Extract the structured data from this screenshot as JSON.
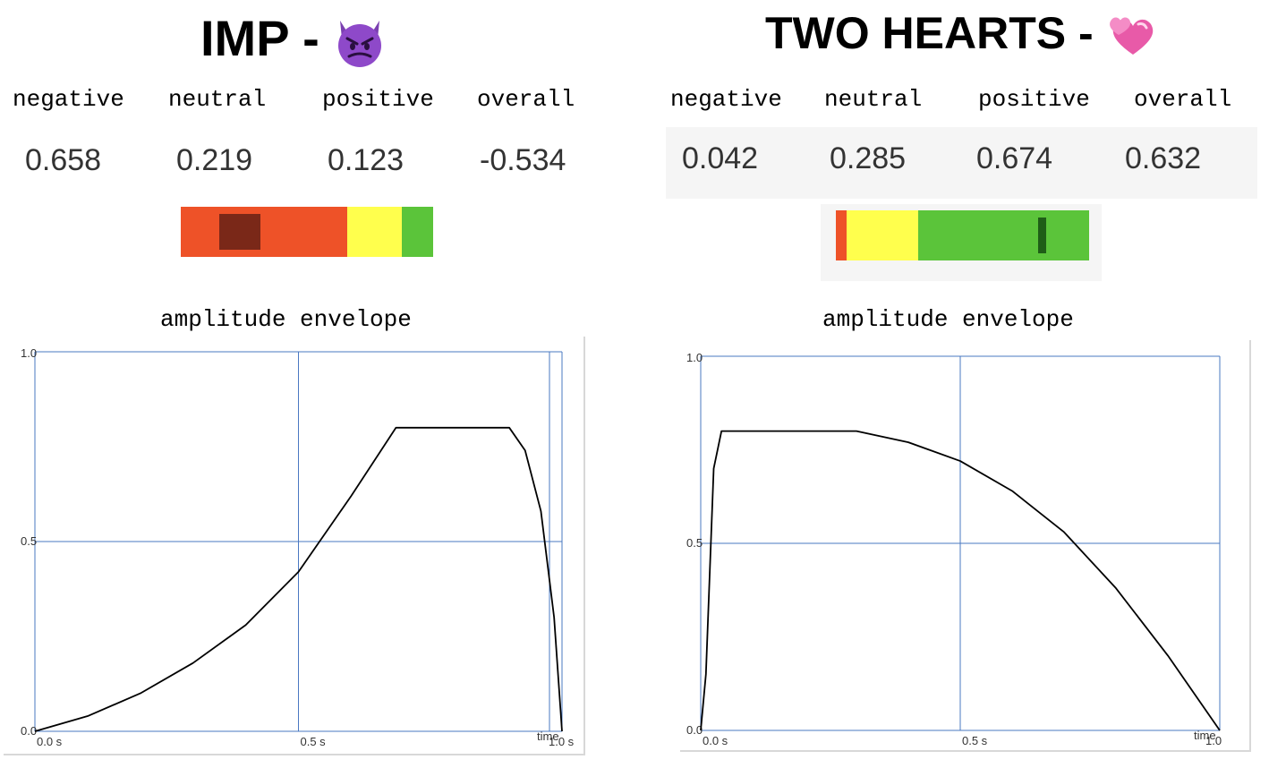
{
  "imp": {
    "title": "IMP -",
    "emoji": "smiling-imp-emoji",
    "headers": [
      "negative",
      "neutral",
      "positive",
      "overall"
    ],
    "values": [
      "0.658",
      "0.219",
      "0.123",
      "-0.534"
    ],
    "bar": {
      "negative": 0.658,
      "neutral": 0.219,
      "positive": 0.123,
      "overall": -0.534
    },
    "envelope_title": "amplitude envelope",
    "chart_data": {
      "type": "line",
      "title": "amplitude envelope",
      "xlabel": "time",
      "ylabel": "",
      "xlim": [
        0,
        1.0
      ],
      "ylim": [
        0,
        1.0
      ],
      "x_ticks": [
        "0.0 s",
        "0.5 s",
        "1.0 s"
      ],
      "y_ticks": [
        "0.0",
        "0.5",
        "1.0"
      ],
      "grid": true,
      "series": [
        {
          "name": "envelope",
          "x": [
            0,
            0.1,
            0.2,
            0.3,
            0.4,
            0.5,
            0.6,
            0.685,
            0.9,
            0.93,
            0.96,
            0.985,
            1.0
          ],
          "y": [
            0,
            0.04,
            0.1,
            0.18,
            0.28,
            0.42,
            0.62,
            0.8,
            0.8,
            0.74,
            0.58,
            0.3,
            0.0
          ]
        }
      ]
    },
    "x_axis_label": "time",
    "x_tick_labels": [
      "0.0 s",
      "0.5 s",
      "1.0 s"
    ],
    "y_tick_labels": [
      "0.0",
      "0.5",
      "1.0"
    ]
  },
  "two_hearts": {
    "title": "TWO HEARTS -",
    "emoji": "two-hearts-emoji",
    "headers": [
      "negative",
      "neutral",
      "positive",
      "overall"
    ],
    "values": [
      "0.042",
      "0.285",
      "0.674",
      "0.632"
    ],
    "bar": {
      "negative": 0.042,
      "neutral": 0.285,
      "positive": 0.674,
      "overall": 0.632
    },
    "envelope_title": "amplitude envelope",
    "chart_data": {
      "type": "line",
      "title": "amplitude envelope",
      "xlabel": "time",
      "ylabel": "",
      "xlim": [
        0,
        1.0
      ],
      "ylim": [
        0,
        1.0
      ],
      "x_ticks": [
        "0.0 s",
        "0.5 s",
        "1.0"
      ],
      "y_ticks": [
        "0.0",
        "0.5",
        "1.0"
      ],
      "grid": true,
      "series": [
        {
          "name": "envelope",
          "x": [
            0,
            0.01,
            0.025,
            0.04,
            0.3,
            0.4,
            0.5,
            0.6,
            0.7,
            0.8,
            0.9,
            1.0
          ],
          "y": [
            0,
            0.15,
            0.7,
            0.8,
            0.8,
            0.77,
            0.72,
            0.64,
            0.53,
            0.38,
            0.2,
            0.0
          ]
        }
      ]
    },
    "x_axis_label": "time",
    "x_tick_labels": [
      "0.0 s",
      "0.5 s",
      "1.0"
    ],
    "y_tick_labels": [
      "0.0",
      "0.5",
      "1.0"
    ]
  },
  "colors": {
    "negative": "#ee5228",
    "neutral": "#ffff4d",
    "positive": "#5bc43a",
    "grid": "#4a78c2",
    "line": "#000000"
  }
}
